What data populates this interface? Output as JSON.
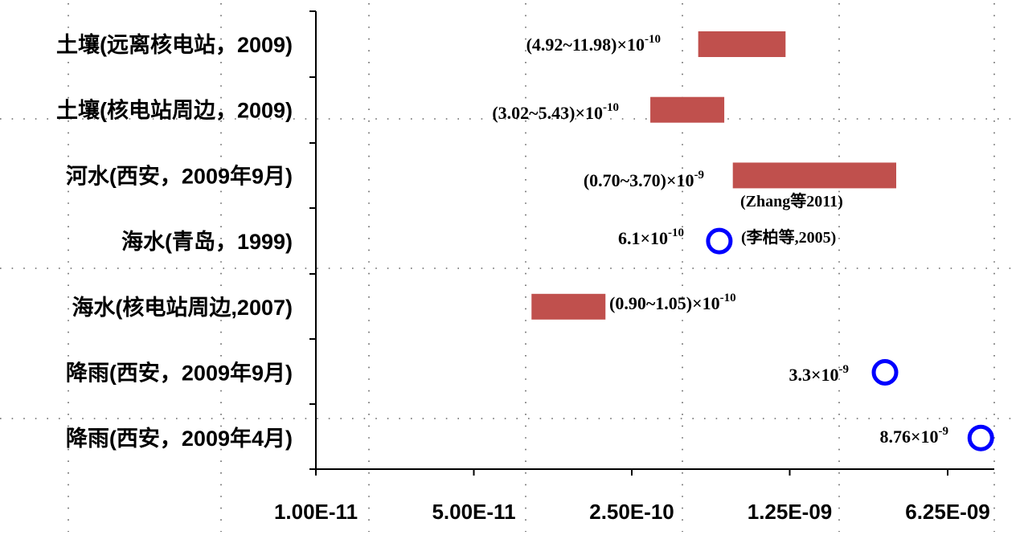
{
  "chart_data": {
    "type": "range",
    "x_scale": "log",
    "x_ticks": [
      "1.00E-11",
      "5.00E-11",
      "2.50E-10",
      "1.25E-09",
      "6.25E-09"
    ],
    "x_tick_values": [
      1e-11,
      5e-11,
      2.5e-10,
      1.25e-09,
      6.25e-09
    ],
    "xlim": [
      1e-11,
      8.5e-09
    ],
    "grid": "dotted",
    "categories": [
      "土壤(远离核电站，2009)",
      "土壤(核电站周边，2009)",
      "河水(西安，2009年9月)",
      "海水(青岛，1999)",
      "海水(核电站周边,2007)",
      "降雨(西安，2009年9月)",
      "降雨(西安，2009年4月)"
    ],
    "items": [
      {
        "kind": "range",
        "low": 4.92e-10,
        "high": 1.198e-09,
        "label_main": "(4.92~11.98)×10",
        "label_exp": "-10",
        "color": "#c0504d"
      },
      {
        "kind": "range",
        "low": 3.02e-10,
        "high": 5.43e-10,
        "label_main": "(3.02~5.43)×10",
        "label_exp": "-10",
        "color": "#c0504d"
      },
      {
        "kind": "range",
        "low": 7e-10,
        "high": 3.7e-09,
        "label_main": "(0.70~3.70)×10",
        "label_exp": "-9",
        "color": "#c0504d"
      },
      {
        "kind": "point",
        "value": 6.1e-10,
        "label_main": "6.1×10",
        "label_exp": "-10",
        "color": "#0000ff"
      },
      {
        "kind": "range",
        "low": 9e-11,
        "high": 1.05e-10,
        "label_main": "(0.90~1.05)×10",
        "label_exp": "-10",
        "color": "#c0504d"
      },
      {
        "kind": "point",
        "value": 3.3e-09,
        "label_main": "3.3×10",
        "label_exp": "-9",
        "color": "#0000ff"
      },
      {
        "kind": "point",
        "value": 8.76e-09,
        "label_main": "8.76×10",
        "label_exp": "-9",
        "color": "#0000ff"
      }
    ],
    "annotations": [
      "(Zhang等2011)",
      "(李柏等,2005)"
    ]
  }
}
